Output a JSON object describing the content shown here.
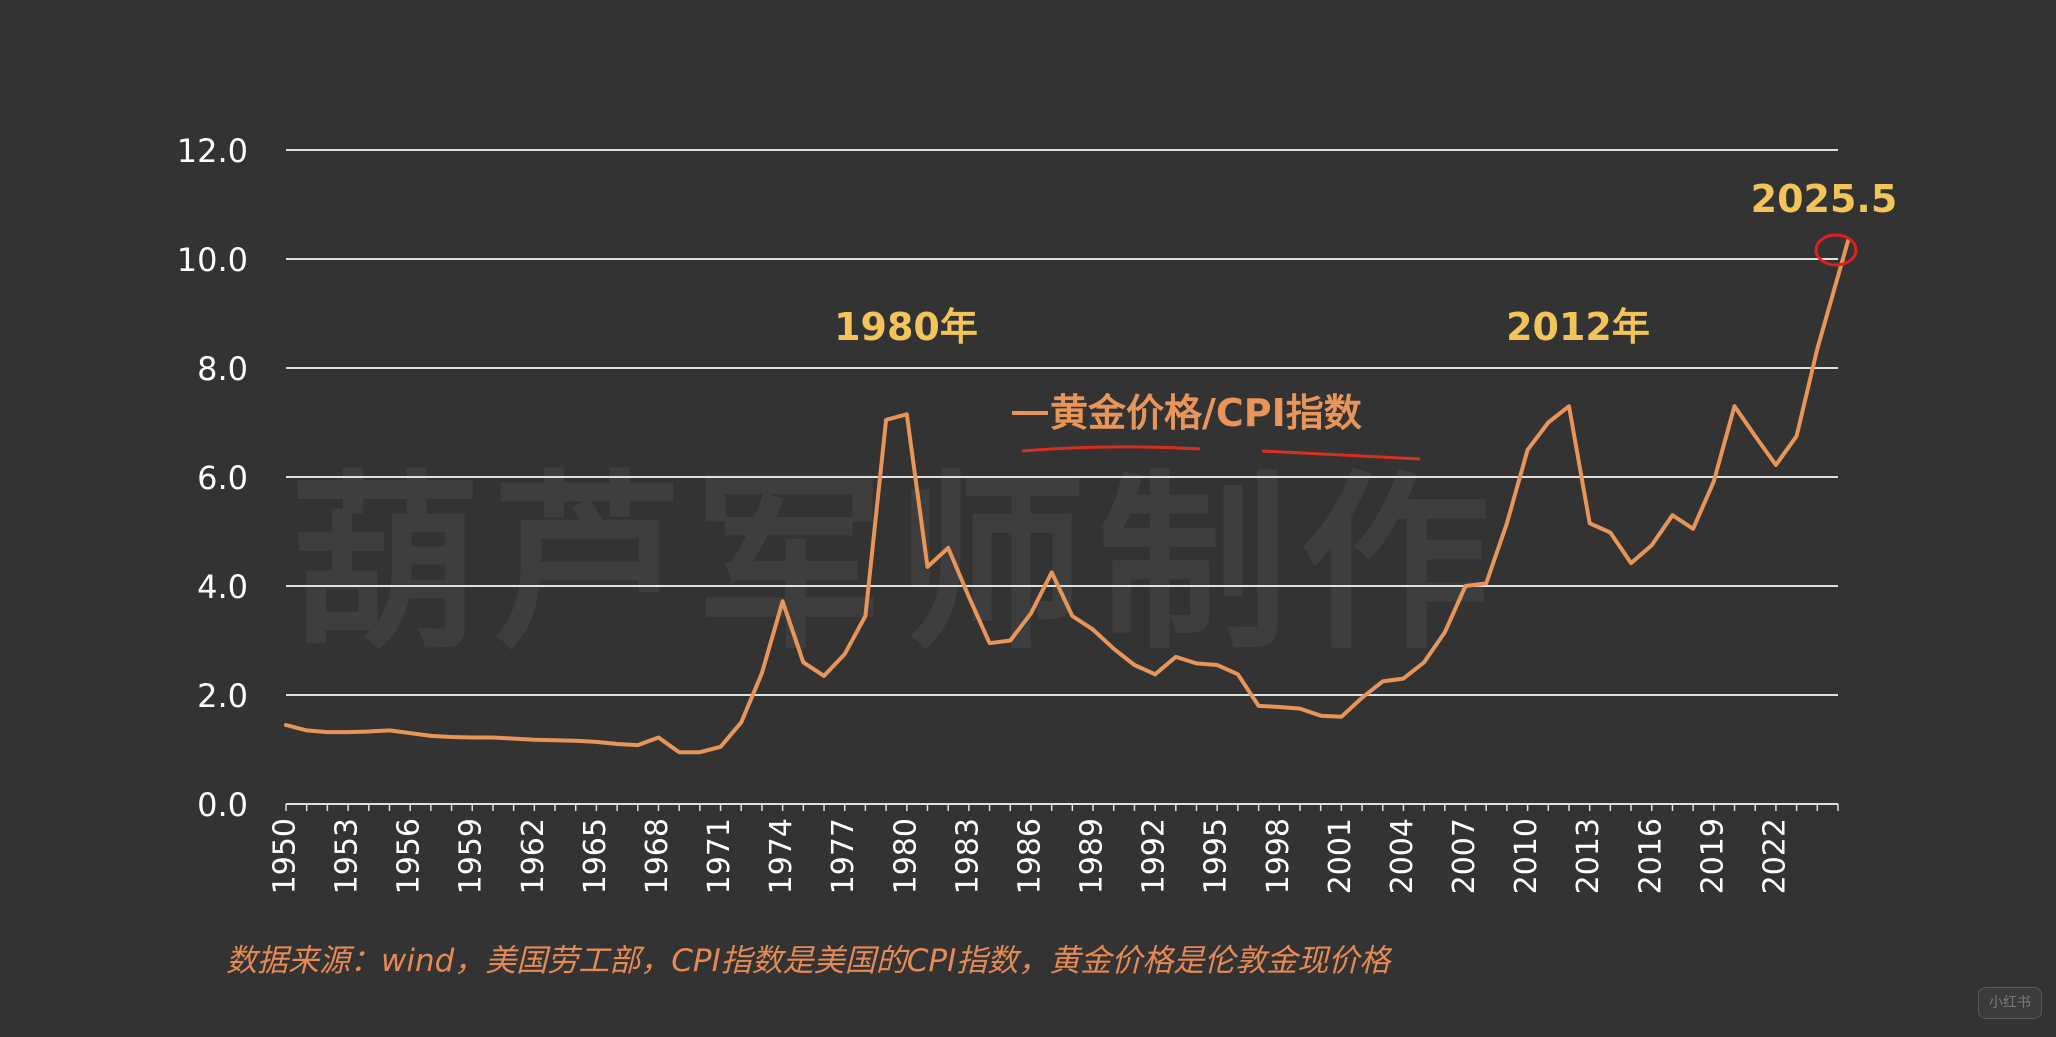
{
  "chart_data": {
    "type": "line",
    "x_tick_labels": [
      "1950",
      "1953",
      "1956",
      "1959",
      "1962",
      "1965",
      "1968",
      "1971",
      "1974",
      "1977",
      "1980",
      "1983",
      "1986",
      "1989",
      "1992",
      "1995",
      "1998",
      "2001",
      "2004",
      "2007",
      "2010",
      "2013",
      "2016",
      "2019",
      "2022"
    ],
    "y_tick_labels": [
      "0.0",
      "2.0",
      "4.0",
      "6.0",
      "8.0",
      "10.0",
      "12.0"
    ],
    "ylim": [
      0,
      12
    ],
    "xlim": [
      1950,
      2025
    ],
    "grid": "horizontal",
    "series": [
      {
        "name": "黄金价格/CPI指数",
        "color": "#e8955a",
        "x": [
          1950,
          1951,
          1952,
          1953,
          1954,
          1955,
          1956,
          1957,
          1958,
          1959,
          1960,
          1961,
          1962,
          1963,
          1964,
          1965,
          1966,
          1967,
          1968,
          1969,
          1970,
          1971,
          1972,
          1973,
          1974,
          1975,
          1976,
          1977,
          1978,
          1979,
          1980,
          1981,
          1982,
          1983,
          1984,
          1985,
          1986,
          1987,
          1988,
          1989,
          1990,
          1991,
          1992,
          1993,
          1994,
          1995,
          1996,
          1997,
          1998,
          1999,
          2000,
          2001,
          2002,
          2003,
          2004,
          2005,
          2006,
          2007,
          2008,
          2009,
          2010,
          2011,
          2012,
          2013,
          2014,
          2015,
          2016,
          2017,
          2018,
          2019,
          2020,
          2021,
          2022,
          2023,
          2024,
          2025.5
        ],
        "values": [
          1.45,
          1.35,
          1.32,
          1.32,
          1.33,
          1.35,
          1.3,
          1.25,
          1.23,
          1.22,
          1.22,
          1.2,
          1.18,
          1.17,
          1.16,
          1.14,
          1.1,
          1.08,
          1.22,
          0.95,
          0.95,
          1.05,
          1.5,
          2.4,
          3.72,
          2.6,
          2.35,
          2.75,
          3.45,
          7.05,
          7.15,
          4.35,
          4.7,
          3.8,
          2.95,
          3.0,
          3.5,
          4.25,
          3.45,
          3.2,
          2.85,
          2.55,
          2.38,
          2.7,
          2.58,
          2.55,
          2.38,
          1.8,
          1.78,
          1.75,
          1.62,
          1.6,
          1.95,
          2.25,
          2.3,
          2.6,
          3.15,
          4.0,
          4.05,
          5.15,
          6.5,
          7.0,
          7.3,
          5.15,
          4.98,
          4.42,
          4.75,
          5.3,
          5.05,
          5.92,
          7.3,
          6.75,
          6.22,
          6.75,
          8.35,
          10.35
        ]
      }
    ],
    "annotations": [
      "1980年",
      "2012年",
      "2025.5"
    ],
    "source": "数据来源：wind，美国劳工部，CPI指数是美国的CPI指数，黄金价格是伦敦金现价格"
  },
  "watermark": {
    "main": "葫芦军师制作",
    "badge": "小红书"
  },
  "colors": {
    "background": "#333333",
    "line": "#e8955a",
    "annotation": "#f2c45a",
    "grid": "#e0e0e0",
    "axis_text": "#ffffff",
    "source_text": "#e58a55",
    "highlight": "#e02020"
  }
}
